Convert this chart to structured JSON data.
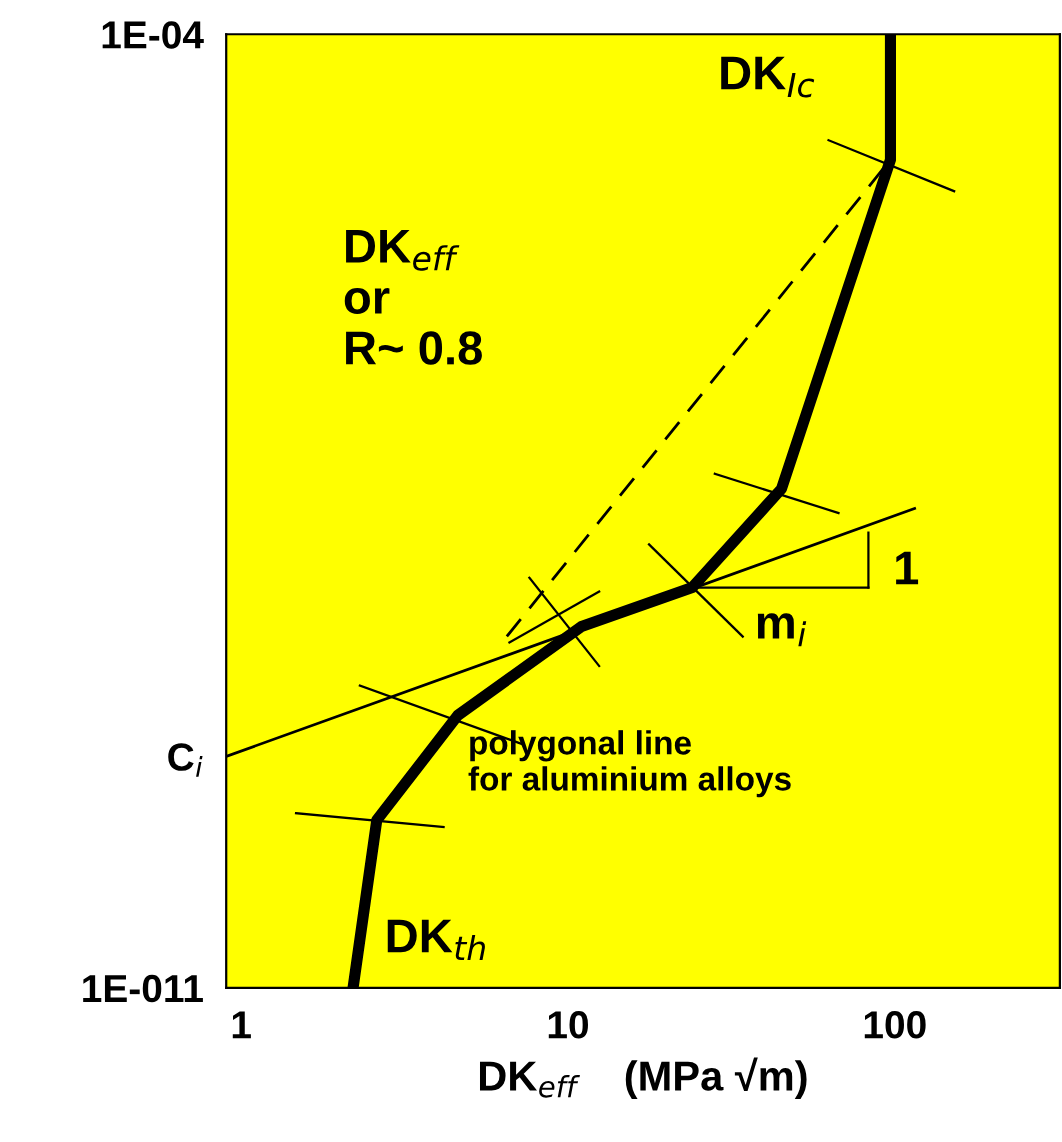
{
  "chart_data": {
    "type": "line",
    "xlabel": "DK$_{eff}$    (MPa √m)",
    "log": "xy",
    "grid": false,
    "legend": false,
    "marker": "none",
    "xlim": [
      0.9,
      320
    ],
    "ylim": [
      1e-11,
      0.0001
    ],
    "xticks": [
      1,
      10,
      100
    ],
    "yticks": [
      {
        "value": 1e-11,
        "label": "1E-011"
      },
      {
        "value": 5e-10,
        "label": "C$_{i}$"
      },
      {
        "value": 0.0001,
        "label": "1E-04"
      }
    ],
    "series": [
      {
        "color": "#000000",
        "line_style": "solid",
        "x": [
          2.2,
          2.6,
          4.6,
          11,
          24,
          45,
          97,
          97
        ],
        "values": [
          1e-11,
          1.7e-10,
          1e-09,
          4.5e-09,
          8.7e-09,
          4.6e-08,
          1.2e-05,
          0.0001
        ]
      },
      {
        "color": "#000000",
        "line_style": "dashed",
        "x": [
          6.5,
          97
        ],
        "values": [
          3.8e-09,
          1.2e-05
        ]
      },
      {
        "color": "#000000",
        "line_style": "solid",
        "x": [
          0.9,
          115
        ],
        "values": [
          5e-10,
          3.3e-08
        ]
      }
    ],
    "annotations": [
      "DK$_{Ic}$",
      "DK$_{eff}$\nor\nR~ 0.8",
      "1",
      "m$_{i}$",
      "polygonal line\nfor aluminium alloys",
      "DK$_{th}$"
    ]
  }
}
